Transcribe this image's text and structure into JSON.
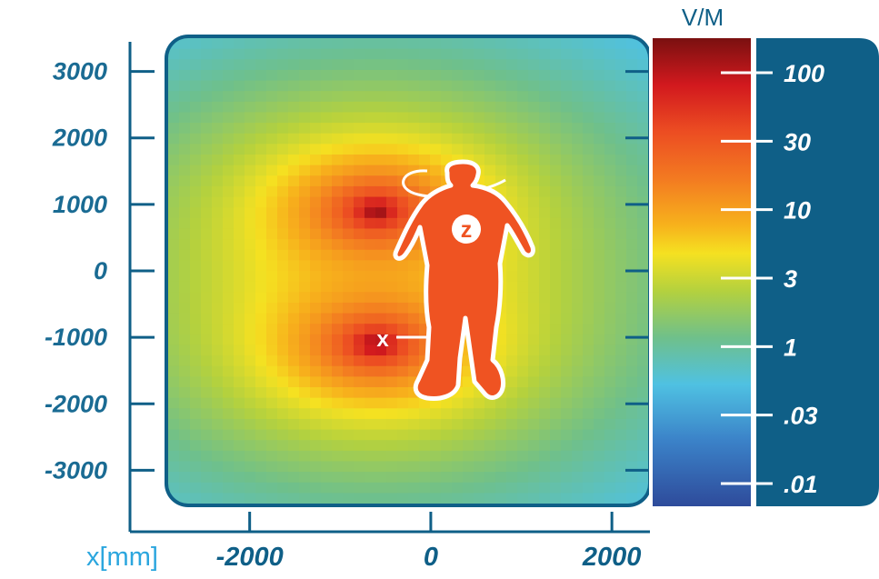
{
  "chart_data": {
    "type": "heatmap",
    "xlabel": "x[mm]",
    "xlim": [
      -2900,
      2400
    ],
    "ylim": [
      -3500,
      3500
    ],
    "x_ticks": [
      {
        "value": -2000,
        "label": "-2000"
      },
      {
        "value": 0,
        "label": "0"
      },
      {
        "value": 2000,
        "label": "2000"
      }
    ],
    "y_ticks": [
      {
        "value": 3000,
        "label": "3000"
      },
      {
        "value": 2000,
        "label": "2000"
      },
      {
        "value": 1000,
        "label": "1000"
      },
      {
        "value": 0,
        "label": "0"
      },
      {
        "value": -1000,
        "label": "-1000"
      },
      {
        "value": -2000,
        "label": "-2000"
      },
      {
        "value": -3000,
        "label": "-3000"
      }
    ],
    "colorbar": {
      "unit": "V/M",
      "labels": [
        "100",
        "30",
        "10",
        "3",
        "1",
        ".03",
        ".01"
      ]
    },
    "hotspots": [
      {
        "x": -600,
        "y": 900,
        "peak": "100"
      },
      {
        "x": -600,
        "y": -1100,
        "peak": "100"
      }
    ],
    "annotations": {
      "figure_badge": "z",
      "marker": "x"
    },
    "colors": {
      "frame": "#0f5f87",
      "axis_text": "#1a6b93",
      "figure": "#ef5322",
      "figure_outline": "#ffffff"
    }
  }
}
